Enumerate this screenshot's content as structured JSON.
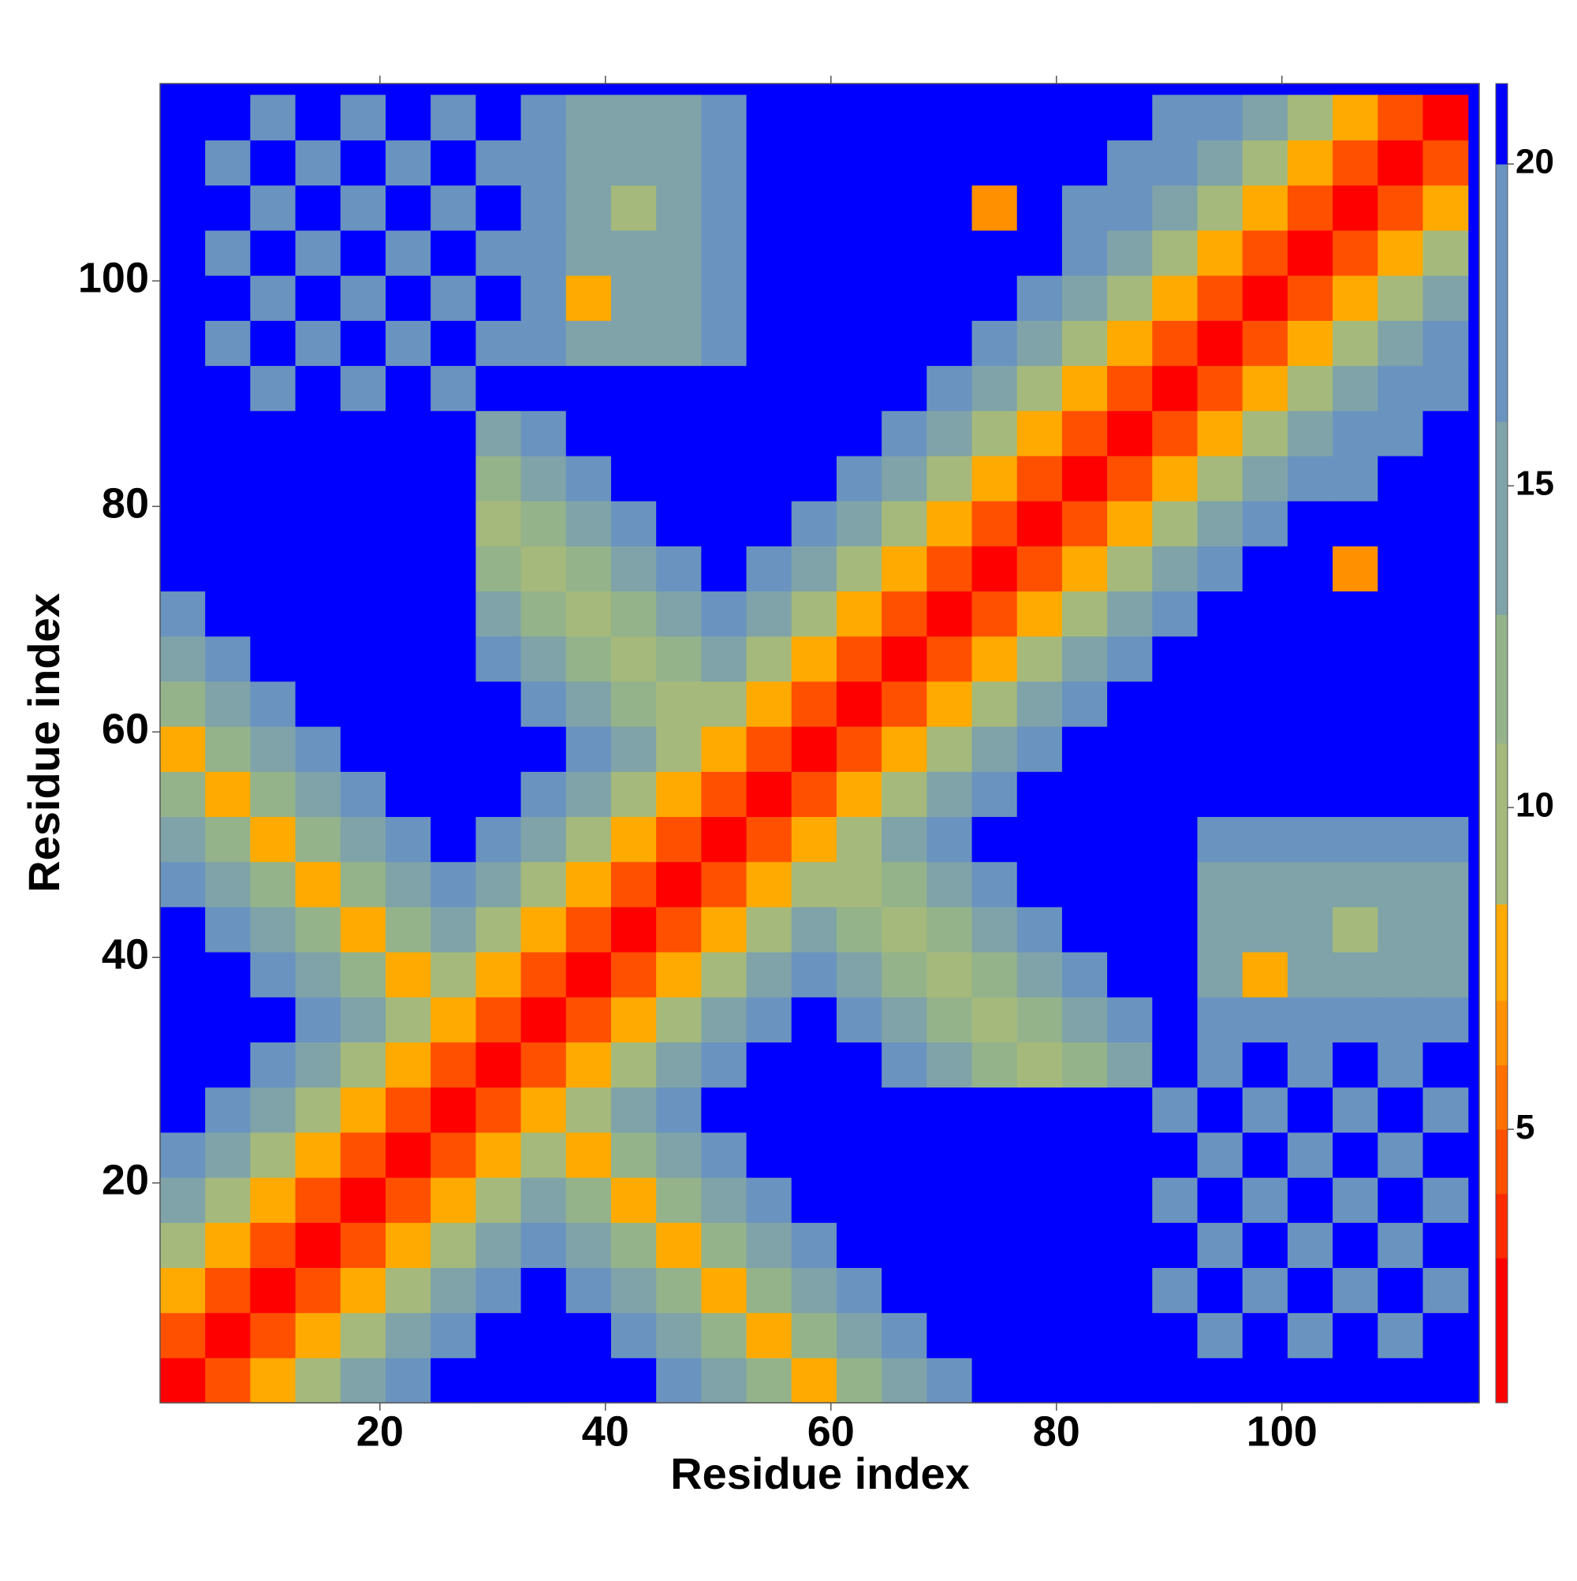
{
  "chart_data": {
    "type": "heatmap",
    "xlabel": "Residue index",
    "ylabel": "Residue index",
    "xlim": [
      0.5,
      117.5
    ],
    "ylim": [
      0.5,
      117.5
    ],
    "xticks": [
      20,
      40,
      60,
      80,
      100
    ],
    "yticks": [
      20,
      40,
      60,
      80,
      100
    ],
    "colorbar": {
      "lim": [
        0.75,
        21.25
      ],
      "ticks": [
        5,
        10,
        15,
        20
      ]
    },
    "colorscale": [
      [
        3,
        "#ff0000"
      ],
      [
        4,
        "#ff2a00"
      ],
      [
        5,
        "#ff5000"
      ],
      [
        6,
        "#ff7000"
      ],
      [
        7,
        "#ff9000"
      ],
      [
        8.5,
        "#ffaa00"
      ],
      [
        11,
        "#a5b97c"
      ],
      [
        13,
        "#94b38a"
      ],
      [
        16,
        "#7fa3a8"
      ],
      [
        20,
        "#6a94bf"
      ],
      [
        21.25,
        "#0000ff"
      ]
    ],
    "x": [
      2.5,
      6.5,
      10.5,
      14.5,
      18.5,
      22.5,
      26.5,
      30.5,
      34.5,
      38.5,
      42.5,
      46.5,
      50.5,
      54.5,
      58.5,
      62.5,
      66.5,
      70.5,
      74.5,
      78.5,
      82.5,
      86.5,
      90.5,
      94.5,
      98.5,
      102.5,
      106.5,
      110.5,
      114.5
    ],
    "y": [
      2.5,
      6.5,
      10.5,
      14.5,
      18.5,
      22.5,
      26.5,
      30.5,
      34.5,
      38.5,
      42.5,
      46.5,
      50.5,
      54.5,
      58.5,
      62.5,
      66.5,
      70.5,
      74.5,
      78.5,
      82.5,
      86.5,
      90.5,
      94.5,
      98.5,
      102.5,
      106.5,
      110.5,
      114.5
    ],
    "z": [
      [
        2,
        5,
        8,
        11,
        14,
        17,
        22,
        22,
        22,
        22,
        22,
        18,
        15,
        12,
        8,
        12,
        15,
        18,
        22,
        22,
        22,
        22,
        22,
        22,
        22,
        22,
        22,
        22,
        22
      ],
      [
        5,
        2,
        5,
        8,
        11,
        14,
        17,
        22,
        22,
        22,
        18,
        15,
        12,
        8,
        12,
        15,
        18,
        22,
        22,
        22,
        22,
        22,
        22,
        19,
        22,
        19,
        22,
        19,
        22
      ],
      [
        8,
        5,
        2,
        5,
        8,
        11,
        14,
        17,
        22,
        18,
        15,
        12,
        8,
        12,
        15,
        18,
        22,
        22,
        22,
        22,
        22,
        22,
        19,
        22,
        19,
        22,
        19,
        22,
        19
      ],
      [
        11,
        8,
        5,
        2,
        5,
        8,
        11,
        14,
        17,
        15,
        12,
        8,
        12,
        15,
        18,
        22,
        22,
        22,
        22,
        22,
        22,
        22,
        22,
        19,
        22,
        19,
        22,
        19,
        22
      ],
      [
        14,
        11,
        8,
        5,
        2,
        5,
        8,
        11,
        14,
        12,
        8,
        12,
        15,
        18,
        22,
        22,
        22,
        22,
        22,
        22,
        22,
        22,
        19,
        22,
        19,
        22,
        19,
        22,
        19
      ],
      [
        17,
        14,
        11,
        8,
        5,
        2,
        5,
        8,
        11,
        8,
        12,
        15,
        18,
        22,
        22,
        22,
        22,
        22,
        22,
        22,
        22,
        22,
        22,
        19,
        22,
        19,
        22,
        19,
        22
      ],
      [
        22,
        17,
        14,
        11,
        8,
        5,
        2,
        5,
        8,
        11,
        14,
        17,
        22,
        22,
        22,
        22,
        22,
        22,
        22,
        22,
        22,
        22,
        19,
        22,
        19,
        22,
        19,
        22,
        19
      ],
      [
        22,
        22,
        17,
        14,
        11,
        8,
        5,
        2,
        5,
        8,
        11,
        14,
        17,
        22,
        22,
        22,
        18,
        15,
        12,
        9,
        12,
        15,
        22,
        19,
        22,
        19,
        22,
        19,
        22
      ],
      [
        22,
        22,
        22,
        17,
        14,
        11,
        8,
        5,
        2,
        5,
        8,
        11,
        14,
        17,
        22,
        18,
        15,
        12,
        9,
        12,
        15,
        18,
        22,
        17,
        17,
        17,
        17,
        17,
        17
      ],
      [
        22,
        22,
        18,
        15,
        12,
        8,
        11,
        8,
        5,
        2,
        5,
        8,
        11,
        14,
        17,
        15,
        12,
        9,
        12,
        15,
        18,
        22,
        22,
        14,
        8,
        14,
        14,
        14,
        14
      ],
      [
        22,
        18,
        15,
        12,
        8,
        12,
        14,
        11,
        8,
        5,
        2,
        5,
        8,
        11,
        14,
        12,
        9,
        12,
        15,
        18,
        22,
        22,
        22,
        14,
        14,
        14,
        9,
        14,
        14
      ],
      [
        18,
        15,
        12,
        8,
        12,
        15,
        17,
        14,
        11,
        8,
        5,
        2,
        5,
        8,
        11,
        9,
        12,
        15,
        18,
        22,
        22,
        22,
        22,
        14,
        14,
        14,
        14,
        14,
        14
      ],
      [
        15,
        12,
        8,
        12,
        15,
        18,
        22,
        17,
        14,
        11,
        8,
        5,
        2,
        5,
        8,
        11,
        14,
        17,
        22,
        22,
        22,
        22,
        22,
        17,
        17,
        17,
        17,
        17,
        17
      ],
      [
        12,
        8,
        12,
        15,
        18,
        22,
        22,
        22,
        17,
        14,
        11,
        8,
        5,
        2,
        5,
        8,
        11,
        14,
        17,
        22,
        22,
        22,
        22,
        22,
        22,
        22,
        22,
        22,
        22
      ],
      [
        8,
        12,
        15,
        18,
        22,
        22,
        22,
        22,
        22,
        17,
        14,
        11,
        8,
        5,
        2,
        5,
        8,
        11,
        14,
        17,
        22,
        22,
        22,
        22,
        22,
        22,
        22,
        22,
        22
      ],
      [
        12,
        15,
        18,
        22,
        22,
        22,
        22,
        22,
        18,
        15,
        12,
        9,
        11,
        8,
        5,
        2,
        5,
        8,
        11,
        14,
        17,
        22,
        22,
        22,
        22,
        22,
        22,
        22,
        22
      ],
      [
        15,
        18,
        22,
        22,
        22,
        22,
        22,
        18,
        15,
        12,
        9,
        12,
        14,
        11,
        8,
        5,
        2,
        5,
        8,
        11,
        14,
        17,
        22,
        22,
        22,
        22,
        22,
        22,
        22
      ],
      [
        18,
        22,
        22,
        22,
        22,
        22,
        22,
        15,
        12,
        9,
        12,
        15,
        17,
        14,
        11,
        8,
        5,
        2,
        5,
        8,
        11,
        14,
        17,
        22,
        22,
        22,
        22,
        22,
        22
      ],
      [
        22,
        22,
        22,
        22,
        22,
        22,
        22,
        12,
        9,
        12,
        15,
        18,
        22,
        17,
        14,
        11,
        8,
        5,
        2,
        5,
        8,
        11,
        14,
        17,
        22,
        22,
        7,
        22,
        22
      ],
      [
        22,
        22,
        22,
        22,
        22,
        22,
        22,
        9,
        12,
        15,
        18,
        22,
        22,
        22,
        17,
        14,
        11,
        8,
        5,
        2,
        5,
        8,
        11,
        14,
        17,
        22,
        22,
        22,
        22
      ],
      [
        22,
        22,
        22,
        22,
        22,
        22,
        22,
        12,
        15,
        18,
        22,
        22,
        22,
        22,
        22,
        17,
        14,
        11,
        8,
        5,
        2,
        5,
        8,
        11,
        14,
        17,
        18,
        22,
        22
      ],
      [
        22,
        22,
        22,
        22,
        22,
        22,
        22,
        15,
        18,
        22,
        22,
        22,
        22,
        22,
        22,
        22,
        17,
        14,
        11,
        8,
        5,
        2,
        5,
        8,
        11,
        14,
        17,
        18,
        22
      ],
      [
        22,
        22,
        19,
        22,
        19,
        22,
        19,
        22,
        22,
        22,
        22,
        22,
        22,
        22,
        22,
        22,
        22,
        17,
        14,
        11,
        8,
        5,
        2,
        5,
        8,
        11,
        14,
        17,
        18
      ],
      [
        22,
        19,
        22,
        19,
        22,
        19,
        22,
        19,
        17,
        14,
        14,
        14,
        17,
        22,
        22,
        22,
        22,
        22,
        17,
        14,
        11,
        8,
        5,
        2,
        5,
        8,
        11,
        14,
        17
      ],
      [
        22,
        22,
        19,
        22,
        19,
        22,
        19,
        22,
        17,
        8,
        14,
        14,
        17,
        22,
        22,
        22,
        22,
        22,
        22,
        17,
        14,
        11,
        8,
        5,
        2,
        5,
        8,
        11,
        14
      ],
      [
        22,
        19,
        22,
        19,
        22,
        19,
        22,
        19,
        17,
        14,
        14,
        14,
        17,
        22,
        22,
        22,
        22,
        22,
        22,
        22,
        17,
        14,
        11,
        8,
        5,
        2,
        5,
        8,
        11
      ],
      [
        22,
        22,
        19,
        22,
        19,
        22,
        19,
        22,
        17,
        14,
        9,
        14,
        17,
        22,
        22,
        22,
        22,
        22,
        7,
        22,
        18,
        17,
        14,
        11,
        8,
        5,
        2,
        5,
        8
      ],
      [
        22,
        19,
        22,
        19,
        22,
        19,
        22,
        19,
        17,
        14,
        14,
        14,
        17,
        22,
        22,
        22,
        22,
        22,
        22,
        22,
        22,
        18,
        17,
        14,
        11,
        8,
        5,
        2,
        5
      ],
      [
        22,
        22,
        19,
        22,
        19,
        22,
        19,
        22,
        17,
        14,
        14,
        14,
        17,
        22,
        22,
        22,
        22,
        22,
        22,
        22,
        22,
        22,
        18,
        17,
        14,
        11,
        8,
        5,
        2
      ]
    ]
  }
}
